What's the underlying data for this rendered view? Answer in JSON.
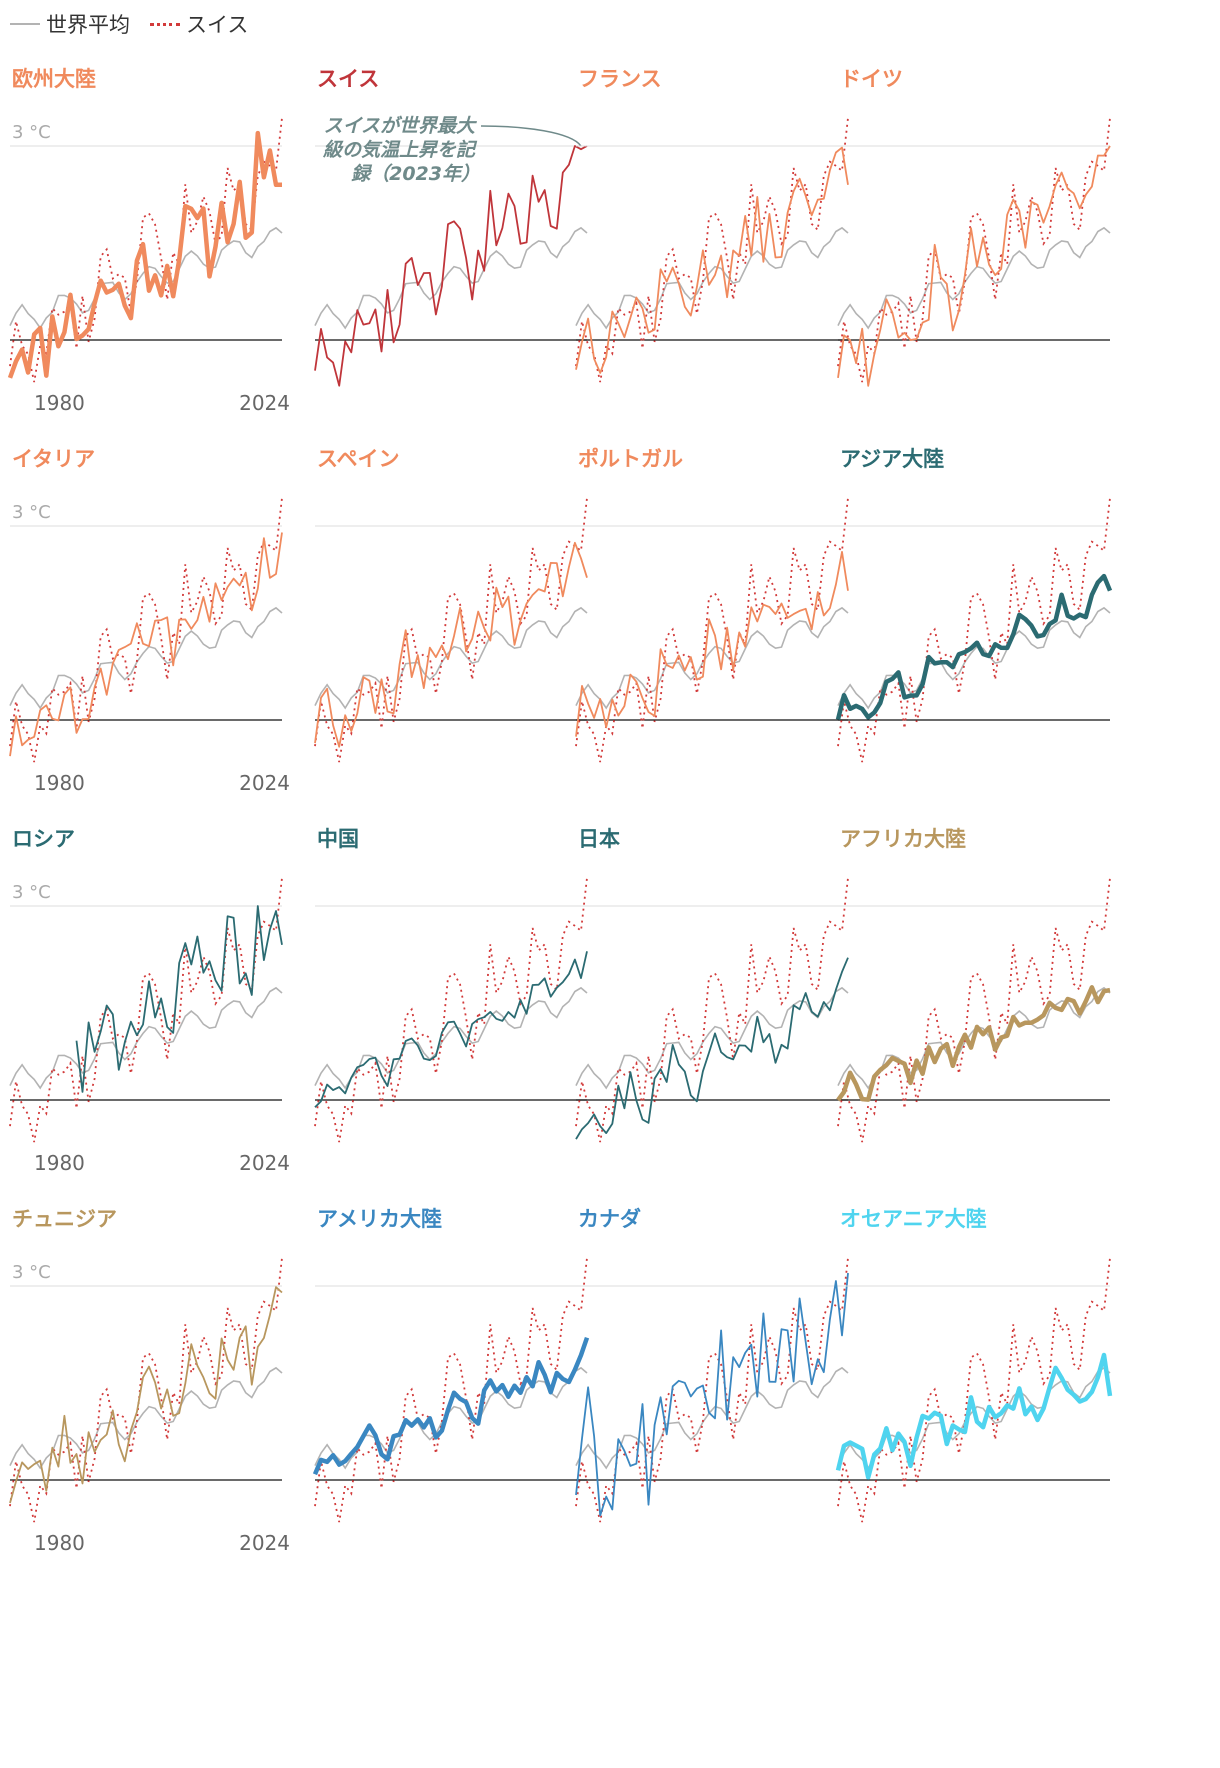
{
  "legend": {
    "world": "世界平均",
    "swiss": "スイス"
  },
  "colors": {
    "world": "#b3b3b3",
    "swiss": "#d23a3a",
    "zero": "#111111",
    "grid": "#dddddd",
    "ylabel": "#aaaaaa",
    "axis_text": "#666666",
    "annotation": "#6f8a8a"
  },
  "chart_data": {
    "type": "line",
    "title": "",
    "xlabel": "",
    "ylabel": "°C",
    "x_range": [
      1979,
      2024
    ],
    "ylim": [
      -1.2,
      3.2
    ],
    "y_tick_label": "3 °C",
    "x_tick_labels": [
      "1980",
      "2024"
    ],
    "annotation": {
      "lines": [
        "スイスが世界最大",
        "級の気温上昇を記",
        "録（2023年）"
      ],
      "panel": "スイス",
      "year": 2023,
      "value": 3.0
    },
    "reference_series": [
      {
        "name": "世界平均",
        "base": 0.25,
        "trend": 0.031,
        "amp": 0.18,
        "noise": 0.06,
        "seed": 101
      },
      {
        "name": "スイス",
        "base": -0.2,
        "trend": 0.066,
        "amp": 0.4,
        "noise": 0.55,
        "seed": 202
      }
    ],
    "panels": [
      {
        "title": "欧州大陸",
        "color": "#f08a5d",
        "bold": true,
        "start": 1979,
        "base": -0.3,
        "trend": 0.06,
        "amp": 0.2,
        "noise": 0.55,
        "seed": 11,
        "spikes": [
          [
            2020,
            3.2
          ],
          [
            2023,
            2.4
          ],
          [
            2024,
            2.4
          ]
        ]
      },
      {
        "title": "スイス",
        "color": "#c0353a",
        "bold": false,
        "start": 1979,
        "base": -0.25,
        "trend": 0.066,
        "amp": 0.3,
        "noise": 0.6,
        "seed": 202,
        "spikes": [
          [
            2022,
            3.0
          ],
          [
            2023,
            2.95
          ],
          [
            2024,
            3.0
          ]
        ]
      },
      {
        "title": "フランス",
        "color": "#f08a5d",
        "bold": false,
        "start": 1979,
        "base": -0.2,
        "trend": 0.058,
        "amp": 0.2,
        "noise": 0.5,
        "seed": 13,
        "spikes": [
          [
            2022,
            2.9
          ],
          [
            2024,
            2.4
          ]
        ]
      },
      {
        "title": "ドイツ",
        "color": "#f08a5d",
        "bold": false,
        "start": 1979,
        "base": -0.25,
        "trend": 0.064,
        "amp": 0.25,
        "noise": 0.65,
        "seed": 14,
        "spikes": [
          [
            2024,
            3.0
          ]
        ]
      },
      {
        "title": "イタリア",
        "color": "#f08a5d",
        "bold": false,
        "start": 1979,
        "base": -0.3,
        "trend": 0.062,
        "amp": 0.2,
        "noise": 0.5,
        "seed": 15,
        "spikes": [
          [
            2024,
            2.9
          ]
        ]
      },
      {
        "title": "スペイン",
        "color": "#f08a5d",
        "bold": false,
        "start": 1979,
        "base": -0.1,
        "trend": 0.057,
        "amp": 0.2,
        "noise": 0.5,
        "seed": 16,
        "spikes": [
          [
            2023,
            2.5
          ],
          [
            2024,
            2.2
          ]
        ]
      },
      {
        "title": "ポルトガル",
        "color": "#f08a5d",
        "bold": false,
        "start": 1979,
        "base": 0.0,
        "trend": 0.05,
        "amp": 0.2,
        "noise": 0.5,
        "seed": 17,
        "spikes": [
          [
            2023,
            2.6
          ],
          [
            2024,
            2.0
          ]
        ]
      },
      {
        "title": "アジア大陸",
        "color": "#2b6b72",
        "bold": true,
        "start": 1979,
        "base": 0.1,
        "trend": 0.042,
        "amp": 0.12,
        "noise": 0.18,
        "seed": 18,
        "spikes": [
          [
            2024,
            2.0
          ]
        ]
      },
      {
        "title": "ロシア",
        "color": "#2b6b72",
        "bold": false,
        "start": 1990,
        "base": 0.15,
        "trend": 0.055,
        "amp": 0.3,
        "noise": 0.6,
        "seed": 19,
        "spikes": [
          [
            2020,
            3.0
          ],
          [
            2024,
            2.4
          ]
        ]
      },
      {
        "title": "中国",
        "color": "#2b6b72",
        "bold": false,
        "start": 1979,
        "base": 0.0,
        "trend": 0.043,
        "amp": 0.15,
        "noise": 0.22,
        "seed": 20,
        "spikes": [
          [
            2024,
            2.3
          ]
        ]
      },
      {
        "title": "日本",
        "color": "#2b6b72",
        "bold": false,
        "start": 1979,
        "base": -0.4,
        "trend": 0.045,
        "amp": 0.2,
        "noise": 0.4,
        "seed": 21,
        "spikes": [
          [
            2024,
            2.2
          ]
        ]
      },
      {
        "title": "アフリカ大陸",
        "color": "#b8975e",
        "bold": true,
        "start": 1979,
        "base": 0.1,
        "trend": 0.035,
        "amp": 0.1,
        "noise": 0.2,
        "seed": 22,
        "spikes": [
          [
            2024,
            1.7
          ]
        ]
      },
      {
        "title": "チュニジア",
        "color": "#b8975e",
        "bold": false,
        "start": 1979,
        "base": -0.1,
        "trend": 0.055,
        "amp": 0.2,
        "noise": 0.5,
        "seed": 23,
        "spikes": [
          [
            2024,
            2.9
          ]
        ]
      },
      {
        "title": "アメリカ大陸",
        "color": "#3a87c1",
        "bold": true,
        "start": 1979,
        "base": 0.2,
        "trend": 0.036,
        "amp": 0.12,
        "noise": 0.22,
        "seed": 24,
        "spikes": [
          [
            2024,
            2.2
          ]
        ]
      },
      {
        "title": "カナダ",
        "color": "#3a87c1",
        "bold": false,
        "start": 1979,
        "base": 0.2,
        "trend": 0.05,
        "amp": 0.4,
        "noise": 0.85,
        "seed": 25,
        "spikes": [
          [
            2024,
            3.2
          ]
        ]
      },
      {
        "title": "オセアニア大陸",
        "color": "#4fd4ef",
        "bold": true,
        "start": 1979,
        "base": 0.3,
        "trend": 0.03,
        "amp": 0.15,
        "noise": 0.3,
        "seed": 26,
        "spikes": [
          [
            2024,
            1.3
          ]
        ]
      }
    ]
  }
}
